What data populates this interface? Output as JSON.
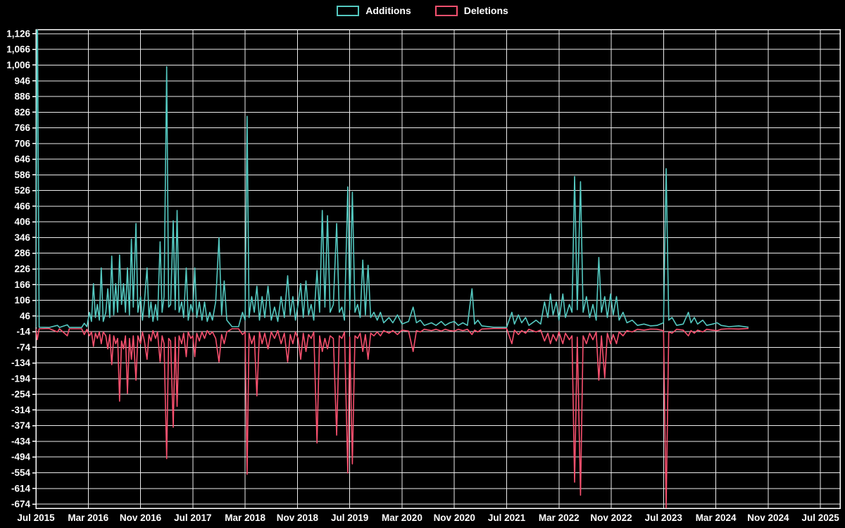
{
  "chart_data": {
    "type": "line",
    "title": "",
    "xlabel": "",
    "ylabel": "",
    "x_unit": "months since Jul 2015 (weekly commit additions/deletions)",
    "xlim": [
      0,
      123
    ],
    "ylim": [
      -690,
      1142
    ],
    "grid": true,
    "legend_position": "top-center",
    "background": "#000000",
    "grid_color": "#ececec",
    "axis_color": "#ffffff",
    "text_color": "#ffffff",
    "x_ticks": [
      {
        "pos": 0,
        "label": "Jul 2015"
      },
      {
        "pos": 8,
        "label": "Mar 2016"
      },
      {
        "pos": 16,
        "label": "Nov 2016"
      },
      {
        "pos": 24,
        "label": "Jul 2017"
      },
      {
        "pos": 32,
        "label": "Mar 2018"
      },
      {
        "pos": 40,
        "label": "Nov 2018"
      },
      {
        "pos": 48,
        "label": "Jul 2019"
      },
      {
        "pos": 56,
        "label": "Mar 2020"
      },
      {
        "pos": 64,
        "label": "Nov 2020"
      },
      {
        "pos": 72,
        "label": "Jul 2021"
      },
      {
        "pos": 80,
        "label": "Mar 2022"
      },
      {
        "pos": 88,
        "label": "Nov 2022"
      },
      {
        "pos": 96,
        "label": "Jul 2023"
      },
      {
        "pos": 104,
        "label": "Mar 2024"
      },
      {
        "pos": 112,
        "label": "Nov 2024"
      },
      {
        "pos": 120,
        "label": "Jul 2025"
      }
    ],
    "y_ticks": [
      {
        "value": 1126,
        "label": "1,126"
      },
      {
        "value": 1066,
        "label": "1,066"
      },
      {
        "value": 1006,
        "label": "1,006"
      },
      {
        "value": 946,
        "label": "946"
      },
      {
        "value": 886,
        "label": "886"
      },
      {
        "value": 826,
        "label": "826"
      },
      {
        "value": 766,
        "label": "766"
      },
      {
        "value": 706,
        "label": "706"
      },
      {
        "value": 646,
        "label": "646"
      },
      {
        "value": 586,
        "label": "586"
      },
      {
        "value": 526,
        "label": "526"
      },
      {
        "value": 466,
        "label": "466"
      },
      {
        "value": 406,
        "label": "406"
      },
      {
        "value": 346,
        "label": "346"
      },
      {
        "value": 286,
        "label": "286"
      },
      {
        "value": 226,
        "label": "226"
      },
      {
        "value": 166,
        "label": "166"
      },
      {
        "value": 106,
        "label": "106"
      },
      {
        "value": 46,
        "label": "46"
      },
      {
        "value": -14,
        "label": "-14"
      },
      {
        "value": -74,
        "label": "-74"
      },
      {
        "value": -134,
        "label": "-134"
      },
      {
        "value": -194,
        "label": "-194"
      },
      {
        "value": -254,
        "label": "-254"
      },
      {
        "value": -314,
        "label": "-314"
      },
      {
        "value": -374,
        "label": "-374"
      },
      {
        "value": -434,
        "label": "-434"
      },
      {
        "value": -494,
        "label": "-494"
      },
      {
        "value": -554,
        "label": "-554"
      },
      {
        "value": -614,
        "label": "-614"
      },
      {
        "value": -674,
        "label": "-674"
      }
    ],
    "x": [
      0,
      0.2,
      0.5,
      2,
      3.3,
      3.6,
      4.8,
      5.1,
      7,
      7.4,
      7.8,
      8.2,
      8.5,
      8.8,
      9.1,
      9.4,
      9.7,
      10,
      10.3,
      10.7,
      11,
      11.3,
      11.6,
      11.9,
      12.2,
      12.5,
      12.8,
      13.1,
      13.4,
      13.7,
      14,
      14.3,
      14.6,
      14.9,
      15.3,
      15.6,
      16,
      16.3,
      16.6,
      17,
      17.3,
      17.6,
      17.9,
      18.3,
      18.6,
      19,
      19.3,
      19.6,
      20,
      20.3,
      20.6,
      21,
      21.3,
      21.6,
      21.9,
      22.3,
      22.6,
      23,
      23.3,
      23.7,
      24,
      24.3,
      24.6,
      25,
      25.4,
      25.8,
      26.2,
      26.6,
      27,
      27.5,
      28,
      28.4,
      28.8,
      29.2,
      30,
      31,
      31.6,
      32,
      32.3,
      32.6,
      33,
      33.4,
      33.8,
      34.2,
      34.6,
      35,
      35.5,
      36,
      36.5,
      37,
      37.5,
      38,
      38.5,
      38.9,
      39.3,
      39.7,
      40.1,
      40.5,
      40.9,
      41.3,
      41.7,
      42.1,
      42.5,
      43,
      43.4,
      43.8,
      44.2,
      44.6,
      45,
      45.5,
      46,
      46.4,
      46.8,
      47.2,
      47.7,
      48,
      48.4,
      48.8,
      49.2,
      49.6,
      50,
      50.4,
      50.8,
      51.2,
      51.7,
      52.2,
      52.7,
      53.2,
      54,
      54.6,
      55.3,
      56,
      57,
      57.7,
      58.2,
      58.8,
      59.4,
      60.5,
      61.2,
      62,
      62.6,
      63.3,
      64,
      64.6,
      65.3,
      66,
      66.7,
      67.1,
      67.6,
      68.2,
      70,
      72,
      72.8,
      73.2,
      73.8,
      74.3,
      74.9,
      75.4,
      76.5,
      77.2,
      77.8,
      78.3,
      78.7,
      79.1,
      79.6,
      80,
      80.6,
      81,
      81.6,
      82,
      82.4,
      82.8,
      83.3,
      83.7,
      84.2,
      84.7,
      85.2,
      85.7,
      86.1,
      86.5,
      87,
      87.4,
      87.9,
      88.3,
      88.8,
      89.2,
      89.8,
      90.4,
      91.2,
      92,
      93,
      94,
      95,
      96,
      96.4,
      96.8,
      97.3,
      98,
      99,
      99.8,
      100.2,
      100.7,
      101.2,
      102,
      102.6,
      103.5,
      104.2,
      104.8,
      106,
      107.5,
      109
    ],
    "series": [
      {
        "name": "Additions",
        "color": "#54c8c0",
        "values": [
          2,
          1350,
          3,
          2,
          10,
          2,
          12,
          2,
          2,
          18,
          5,
          60,
          25,
          170,
          40,
          90,
          30,
          230,
          25,
          60,
          150,
          40,
          275,
          50,
          170,
          60,
          280,
          90,
          170,
          60,
          230,
          50,
          340,
          80,
          400,
          60,
          120,
          30,
          100,
          230,
          40,
          100,
          25,
          90,
          30,
          330,
          60,
          120,
          1000,
          80,
          90,
          410,
          70,
          450,
          60,
          100,
          40,
          230,
          30,
          90,
          60,
          230,
          40,
          100,
          30,
          100,
          25,
          60,
          30,
          100,
          345,
          50,
          180,
          30,
          5,
          5,
          60,
          30,
          810,
          40,
          120,
          60,
          160,
          30,
          120,
          40,
          160,
          30,
          80,
          25,
          120,
          40,
          200,
          50,
          120,
          30,
          90,
          170,
          40,
          180,
          50,
          90,
          30,
          220,
          60,
          450,
          80,
          430,
          60,
          90,
          400,
          60,
          80,
          30,
          540,
          70,
          520,
          60,
          90,
          40,
          260,
          50,
          240,
          40,
          60,
          30,
          60,
          20,
          40,
          20,
          50,
          15,
          25,
          80,
          20,
          30,
          10,
          20,
          10,
          25,
          10,
          20,
          25,
          10,
          20,
          10,
          150,
          15,
          30,
          8,
          3,
          3,
          60,
          15,
          50,
          20,
          40,
          10,
          30,
          15,
          100,
          40,
          130,
          50,
          100,
          30,
          130,
          40,
          90,
          60,
          580,
          70,
          560,
          60,
          120,
          40,
          90,
          30,
          270,
          60,
          120,
          40,
          130,
          50,
          120,
          30,
          60,
          20,
          30,
          10,
          15,
          8,
          10,
          20,
          610,
          30,
          40,
          10,
          15,
          60,
          20,
          40,
          15,
          30,
          10,
          15,
          20,
          10,
          5,
          8,
          3
        ]
      },
      {
        "name": "Deletions",
        "color": "#f8506e",
        "values": [
          -3,
          -45,
          -3,
          -2,
          -15,
          -3,
          -30,
          -3,
          -3,
          -25,
          -5,
          -30,
          -15,
          -70,
          -20,
          -40,
          -15,
          -60,
          -15,
          -30,
          -80,
          -25,
          -140,
          -30,
          -60,
          -40,
          -280,
          -50,
          -80,
          -30,
          -250,
          -40,
          -120,
          -30,
          -200,
          -30,
          -60,
          -15,
          -50,
          -120,
          -25,
          -50,
          -10,
          -40,
          -15,
          -130,
          -30,
          -60,
          -500,
          -40,
          -50,
          -380,
          -35,
          -300,
          -30,
          -60,
          -20,
          -110,
          -15,
          -40,
          -30,
          -110,
          -20,
          -50,
          -15,
          -40,
          -10,
          -25,
          -15,
          -40,
          -130,
          -25,
          -60,
          -15,
          -3,
          -3,
          -25,
          -15,
          -560,
          -20,
          -60,
          -30,
          -260,
          -15,
          -60,
          -20,
          -80,
          -15,
          -40,
          -10,
          -60,
          -20,
          -130,
          -25,
          -60,
          -15,
          -40,
          -120,
          -20,
          -90,
          -25,
          -40,
          -15,
          -440,
          -30,
          -90,
          -40,
          -80,
          -30,
          -40,
          -410,
          -30,
          -40,
          -15,
          -555,
          -35,
          -520,
          -30,
          -40,
          -20,
          -90,
          -25,
          -120,
          -20,
          -30,
          -15,
          -30,
          -10,
          -20,
          -10,
          -25,
          -8,
          -12,
          -90,
          -10,
          -15,
          -5,
          -10,
          -5,
          -12,
          -5,
          -10,
          -12,
          -5,
          -10,
          -5,
          -25,
          -8,
          -15,
          -4,
          -2,
          -2,
          -60,
          -8,
          -25,
          -10,
          -20,
          -5,
          -15,
          -8,
          -50,
          -20,
          -60,
          -25,
          -50,
          -15,
          -60,
          -20,
          -45,
          -30,
          -590,
          -35,
          -640,
          -30,
          -60,
          -20,
          -45,
          -15,
          -200,
          -30,
          -190,
          -20,
          -60,
          -25,
          -60,
          -15,
          -30,
          -10,
          -15,
          -5,
          -8,
          -4,
          -5,
          -10,
          -690,
          -15,
          -20,
          -5,
          -8,
          -30,
          -10,
          -20,
          -8,
          -15,
          -5,
          -8,
          -10,
          -5,
          -3,
          -4,
          -2
        ]
      }
    ]
  }
}
